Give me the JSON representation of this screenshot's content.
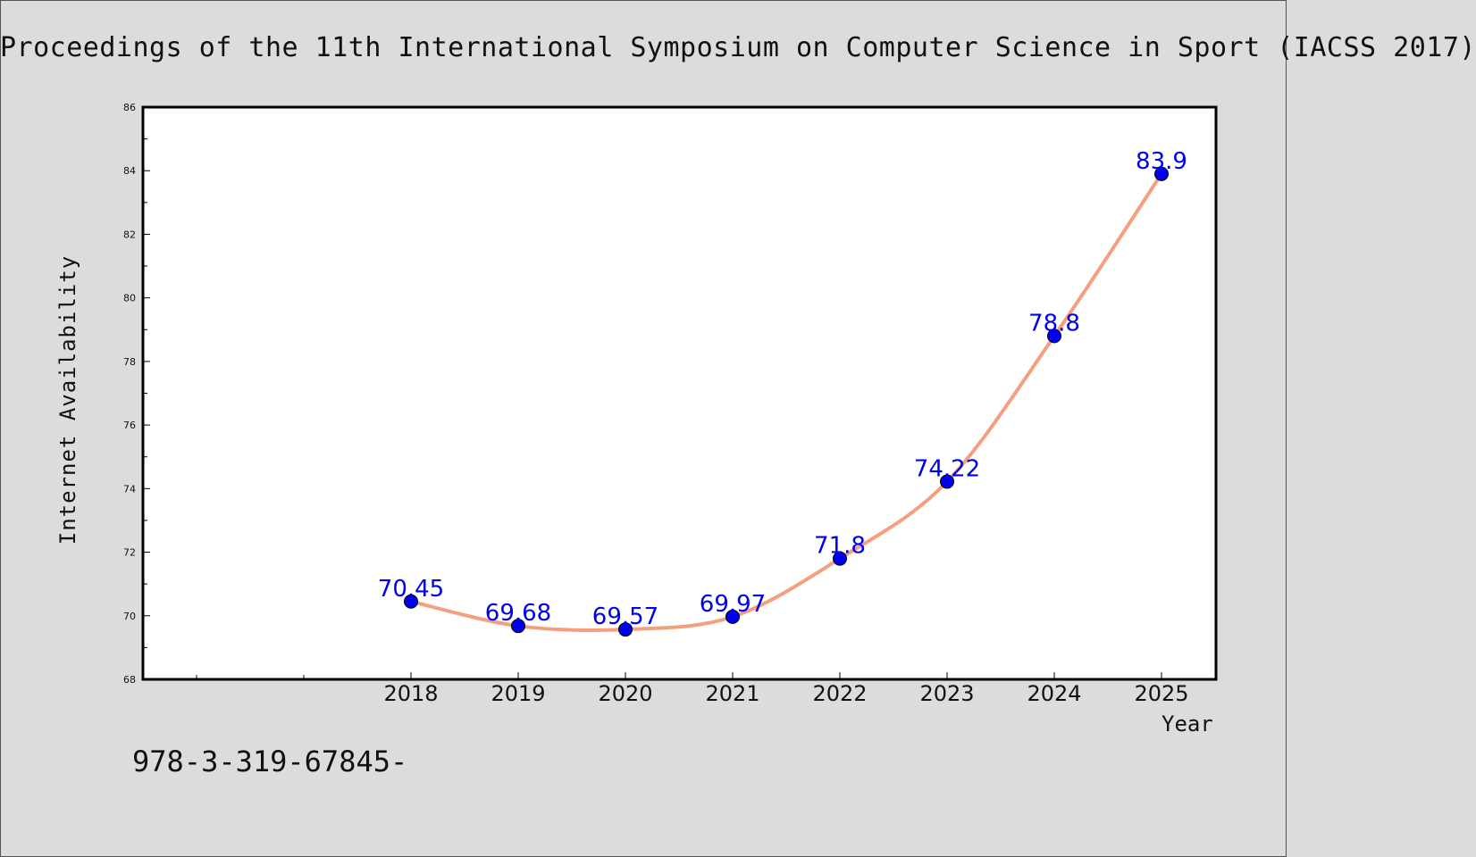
{
  "title": "Proceedings of the 11th International Symposium on Computer Science in Sport (IACSS 2017)",
  "footer_text": "978-3-319-67845-",
  "chart_data": {
    "type": "line",
    "xlabel": "Year",
    "ylabel": "Internet Availability",
    "categories": [
      "2018",
      "2019",
      "2020",
      "2021",
      "2022",
      "2023",
      "2024",
      "2025"
    ],
    "series": [
      {
        "values": [
          70.45,
          69.68,
          69.57,
          69.97,
          71.8,
          74.22,
          78.8,
          83.9
        ],
        "labels": [
          "70.45",
          "69.68",
          "69.57",
          "69.97",
          "71.8",
          "74.22",
          "78.8",
          "83.9"
        ]
      }
    ],
    "ylim": [
      68,
      86
    ],
    "yticks": [
      68,
      70,
      72,
      74,
      76,
      78,
      80,
      82,
      84,
      86
    ],
    "grid": false,
    "line_color": "#f4a07e",
    "marker_color": "#0000ee",
    "label_color": "#0000ee",
    "background": "#dcdcdc",
    "plot_background": "#ffffff"
  }
}
